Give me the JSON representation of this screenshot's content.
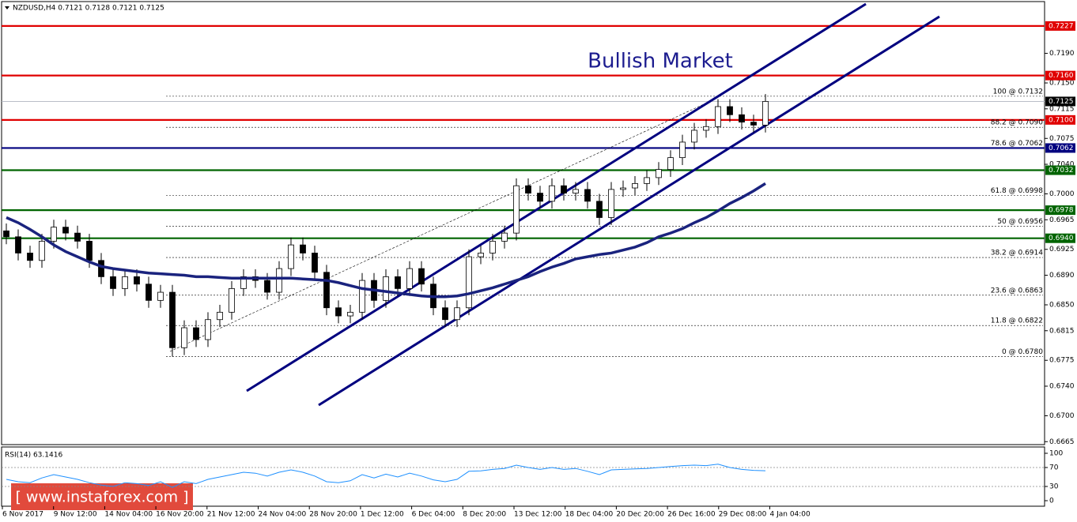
{
  "header": "NZDUSD,H4  0.7121 0.7128 0.7121 0.7125",
  "watermark": "[ www.instaforex.com ]",
  "chart_data": [
    {
      "type": "candlestick",
      "title": "Bullish Market",
      "x_labels": [
        "6 Nov 2017",
        "9 Nov 12:00",
        "14 Nov 04:00",
        "16 Nov 20:00",
        "21 Nov 12:00",
        "24 Nov 04:00",
        "28 Nov 20:00",
        "1 Dec 12:00",
        "6 Dec 04:00",
        "8 Dec 20:00",
        "13 Dec 12:00",
        "18 Dec 04:00",
        "20 Dec 20:00",
        "26 Dec 16:00",
        "29 Dec 08:00",
        "4 Jan 04:00"
      ],
      "open": [
        0.695,
        0.6942,
        0.692,
        0.691,
        0.6936,
        0.6955,
        0.6947,
        0.6936,
        0.691,
        0.6888,
        0.6872,
        0.6888,
        0.6878,
        0.6856,
        0.6867,
        0.6792,
        0.6819,
        0.6803,
        0.683,
        0.684,
        0.6872,
        0.6888,
        0.6883,
        0.6867,
        0.6899,
        0.6931,
        0.692,
        0.6894,
        0.6846,
        0.6835,
        0.684,
        0.6883,
        0.6856,
        0.6888,
        0.6872,
        0.6899,
        0.6878,
        0.6846,
        0.683,
        0.6846,
        0.6915,
        0.692,
        0.6936,
        0.6947,
        0.7011,
        0.7001,
        0.699,
        0.7011,
        0.7001,
        0.7006,
        0.699,
        0.6968,
        0.7006,
        0.7008,
        0.7014,
        0.7022,
        0.7033,
        0.7049,
        0.707,
        0.7086,
        0.7091,
        0.7118,
        0.7107,
        0.7097,
        0.7093
      ],
      "high": [
        0.696,
        0.6952,
        0.693,
        0.6946,
        0.6965,
        0.6965,
        0.6957,
        0.6946,
        0.692,
        0.6898,
        0.6898,
        0.6898,
        0.6888,
        0.6877,
        0.6877,
        0.6829,
        0.6829,
        0.684,
        0.685,
        0.6882,
        0.6898,
        0.6898,
        0.6893,
        0.6909,
        0.6941,
        0.6941,
        0.693,
        0.6904,
        0.6856,
        0.685,
        0.6893,
        0.6893,
        0.6898,
        0.6898,
        0.6909,
        0.6909,
        0.6888,
        0.6856,
        0.6856,
        0.6925,
        0.693,
        0.6946,
        0.6957,
        0.7021,
        0.7021,
        0.7011,
        0.7021,
        0.7021,
        0.7016,
        0.7016,
        0.7,
        0.7016,
        0.7018,
        0.7024,
        0.7032,
        0.7043,
        0.7059,
        0.708,
        0.7096,
        0.7101,
        0.7128,
        0.7128,
        0.7117,
        0.7107,
        0.7135
      ],
      "low": [
        0.6932,
        0.691,
        0.69,
        0.69,
        0.6926,
        0.6937,
        0.6926,
        0.69,
        0.6878,
        0.6862,
        0.6862,
        0.6868,
        0.6846,
        0.6846,
        0.678,
        0.6782,
        0.6793,
        0.6793,
        0.682,
        0.683,
        0.6862,
        0.6873,
        0.6857,
        0.6857,
        0.6889,
        0.691,
        0.6884,
        0.6836,
        0.6825,
        0.6825,
        0.683,
        0.6846,
        0.6846,
        0.6862,
        0.6862,
        0.6868,
        0.6836,
        0.682,
        0.682,
        0.6836,
        0.6905,
        0.691,
        0.6926,
        0.6937,
        0.6991,
        0.698,
        0.698,
        0.6991,
        0.6991,
        0.698,
        0.6958,
        0.6958,
        0.6996,
        0.6998,
        0.7004,
        0.7012,
        0.7023,
        0.7039,
        0.706,
        0.7076,
        0.7081,
        0.7097,
        0.7087,
        0.7083,
        0.7083
      ],
      "close": [
        0.6942,
        0.692,
        0.691,
        0.6936,
        0.6955,
        0.6947,
        0.6936,
        0.691,
        0.6888,
        0.6872,
        0.6888,
        0.6878,
        0.6856,
        0.6867,
        0.6792,
        0.6819,
        0.6803,
        0.683,
        0.684,
        0.6872,
        0.6888,
        0.6883,
        0.6867,
        0.6899,
        0.6931,
        0.692,
        0.6894,
        0.6846,
        0.6835,
        0.684,
        0.6883,
        0.6856,
        0.6888,
        0.6872,
        0.6899,
        0.6878,
        0.6846,
        0.683,
        0.6846,
        0.6915,
        0.692,
        0.6936,
        0.6947,
        0.7011,
        0.7001,
        0.699,
        0.7011,
        0.7001,
        0.7006,
        0.699,
        0.6968,
        0.7006,
        0.7008,
        0.7014,
        0.7022,
        0.7033,
        0.7049,
        0.707,
        0.7086,
        0.7091,
        0.7118,
        0.7107,
        0.7097,
        0.7093,
        0.7125
      ],
      "ma": {
        "color": "#1a237e",
        "values": [
          0.6968,
          0.6961,
          0.6952,
          0.6942,
          0.6931,
          0.6922,
          0.6915,
          0.6908,
          0.6902,
          0.6899,
          0.6897,
          0.6895,
          0.6893,
          0.6892,
          0.6891,
          0.689,
          0.6888,
          0.6888,
          0.6887,
          0.6886,
          0.6886,
          0.6886,
          0.6886,
          0.6886,
          0.6886,
          0.6885,
          0.6884,
          0.6883,
          0.688,
          0.6876,
          0.6872,
          0.687,
          0.6868,
          0.6866,
          0.6864,
          0.6862,
          0.6861,
          0.6861,
          0.6862,
          0.6865,
          0.6869,
          0.6873,
          0.6878,
          0.6883,
          0.6888,
          0.6895,
          0.6901,
          0.6906,
          0.6912,
          0.6915,
          0.6918,
          0.692,
          0.6924,
          0.6928,
          0.6934,
          0.6942,
          0.6947,
          0.6953,
          0.6961,
          0.6968,
          0.6977,
          0.6987,
          0.6995,
          0.7004,
          0.7014
        ]
      },
      "ylim": [
        0.6661,
        0.726
      ],
      "yticks": [
        {
          "value": 0.719,
          "label": "0.7190"
        },
        {
          "value": 0.715,
          "label": "0.7150"
        },
        0.7115,
        0.7075,
        {
          "value": 0.704,
          "label": "0.7040"
        },
        {
          "value": 0.7,
          "label": "0.7000"
        },
        0.6965,
        0.6925,
        {
          "value": 0.689,
          "label": "0.6890"
        },
        {
          "value": 0.685,
          "label": "0.6850"
        },
        0.6815,
        0.6775,
        {
          "value": 0.674,
          "label": "0.6740"
        },
        {
          "value": 0.67,
          "label": "0.6700"
        },
        0.6665
      ],
      "levels": [
        {
          "value": 0.7227,
          "color": "#e00000"
        },
        {
          "value": 0.716,
          "label": "0.7160",
          "color": "#e00000"
        },
        {
          "value": 0.71,
          "label": "0.7100",
          "color": "#e00000"
        },
        {
          "value": 0.7062,
          "color": "#00007f"
        },
        {
          "value": 0.7032,
          "color": "#006400"
        },
        {
          "value": 0.6978,
          "color": "#006400"
        },
        {
          "value": 0.694,
          "label": "0.6940",
          "color": "#006400"
        }
      ],
      "fib_levels": [
        {
          "value": 0.7132,
          "label": "100 @ 0.7132"
        },
        {
          "value": 0.709,
          "label": "88.2 @ 0.7090"
        },
        {
          "value": 0.7062,
          "label": "78.6 @ 0.7062"
        },
        {
          "value": 0.6998,
          "label": "61.8 @ 0.6998"
        },
        {
          "value": 0.6956,
          "label": "50 @ 0.6956"
        },
        {
          "value": 0.6914,
          "label": "38.2 @ 0.6914"
        },
        {
          "value": 0.6863,
          "label": "23.6 @ 0.6863"
        },
        {
          "value": 0.6822,
          "label": "11.8 @ 0.6822"
        },
        {
          "value": 0.678,
          "label": "0 @ 0.6780"
        }
      ],
      "current_price": 0.7125
    },
    {
      "type": "line",
      "title": "RSI(14) 63.1416",
      "color": "#1e90ff",
      "values": [
        45,
        40,
        38,
        48,
        55,
        50,
        45,
        38,
        33,
        30,
        38,
        36,
        32,
        40,
        28,
        40,
        36,
        45,
        50,
        55,
        60,
        58,
        52,
        60,
        65,
        60,
        52,
        40,
        38,
        42,
        55,
        48,
        56,
        50,
        58,
        52,
        44,
        40,
        45,
        62,
        63,
        66,
        68,
        75,
        70,
        66,
        70,
        66,
        68,
        62,
        55,
        65,
        66,
        67,
        68,
        70,
        72,
        74,
        75,
        74,
        77,
        70,
        66,
        64,
        63.1416
      ],
      "ylim": [
        0,
        100
      ],
      "yticks": [
        100,
        70,
        30,
        0
      ],
      "levels": [
        70,
        30
      ]
    }
  ]
}
